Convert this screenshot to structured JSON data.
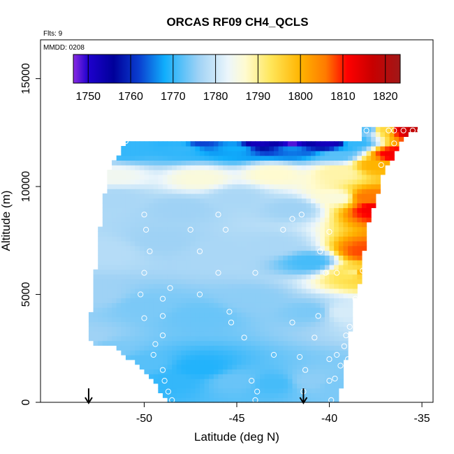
{
  "chart_data": {
    "type": "heatmap",
    "title": "ORCAS RF09 CH4_QCLS",
    "annotations": {
      "flts": "Flts: 9",
      "mmdd": "MMDD: 0208"
    },
    "xlabel": "Latitude (deg N)",
    "ylabel": "Altitude (m)",
    "xlim": [
      -55.6,
      -34.4
    ],
    "ylim": [
      0,
      16800
    ],
    "x_ticks": [
      -50,
      -45,
      -40,
      -35
    ],
    "x_tick_labels": [
      "-50",
      "-45",
      "-40",
      "-35"
    ],
    "y_ticks": [
      0,
      5000,
      10000,
      15000
    ],
    "y_tick_labels": [
      "0",
      "5000",
      "10000",
      "15000"
    ],
    "colorbar": {
      "range": [
        1746.5,
        1823.5
      ],
      "ticks": [
        1750,
        1760,
        1770,
        1780,
        1790,
        1800,
        1810,
        1820
      ],
      "tick_labels": [
        "1750",
        "1760",
        "1770",
        "1780",
        "1790",
        "1800",
        "1810",
        "1820"
      ],
      "colors": [
        [
          1746.5,
          "#8a2be2"
        ],
        [
          1750,
          "#1e00cd"
        ],
        [
          1756,
          "#00009a"
        ],
        [
          1762,
          "#0a3fd0"
        ],
        [
          1768,
          "#10aefc"
        ],
        [
          1776,
          "#9fd2f5"
        ],
        [
          1783,
          "#ecf6fb"
        ],
        [
          1787,
          "#fffbd0"
        ],
        [
          1793,
          "#ffe65a"
        ],
        [
          1800,
          "#ffb400"
        ],
        [
          1806,
          "#ff7a00"
        ],
        [
          1811,
          "#ff0000"
        ],
        [
          1817,
          "#c80000"
        ],
        [
          1823.5,
          "#a01818"
        ]
      ]
    },
    "envelope": [
      [
        -53.0,
        3200
      ],
      [
        -52.4,
        8000
      ],
      [
        -52.0,
        10600
      ],
      [
        -51.0,
        12000
      ],
      [
        -50.6,
        12200
      ],
      [
        -38.2,
        12200
      ],
      [
        -38.2,
        12700
      ],
      [
        -35.2,
        12700
      ],
      [
        -36.0,
        12200
      ],
      [
        -37.0,
        10800
      ],
      [
        -38.0,
        8000
      ],
      [
        -38.3,
        5800
      ],
      [
        -38.7,
        4500
      ],
      [
        -39.0,
        2500
      ],
      [
        -39.3,
        1000
      ],
      [
        -39.5,
        0
      ],
      [
        -48.7,
        0
      ],
      [
        -49.7,
        1200
      ],
      [
        -50.8,
        2000
      ],
      [
        -51.5,
        2600
      ],
      [
        -53.0,
        2800
      ]
    ],
    "field_points": [
      [
        -53.0,
        3000,
        1776
      ],
      [
        -52.0,
        2500,
        1774
      ],
      [
        -50.0,
        1800,
        1772
      ],
      [
        -48.5,
        1000,
        1770
      ],
      [
        -47.0,
        1600,
        1769
      ],
      [
        -45.0,
        1000,
        1773
      ],
      [
        -43.0,
        900,
        1771
      ],
      [
        -41.0,
        1000,
        1775
      ],
      [
        -39.5,
        800,
        1774
      ],
      [
        -52.5,
        5000,
        1776
      ],
      [
        -50.0,
        4500,
        1774
      ],
      [
        -47.0,
        4000,
        1773
      ],
      [
        -44.0,
        4800,
        1775
      ],
      [
        -41.0,
        4200,
        1774
      ],
      [
        -39.2,
        4200,
        1781
      ],
      [
        -52.0,
        7000,
        1778
      ],
      [
        -49.0,
        7500,
        1776
      ],
      [
        -46.0,
        7000,
        1777
      ],
      [
        -43.0,
        7300,
        1777
      ],
      [
        -41.0,
        6500,
        1771
      ],
      [
        -38.6,
        6000,
        1790
      ],
      [
        -51.5,
        9500,
        1777
      ],
      [
        -48.0,
        9000,
        1776
      ],
      [
        -45.0,
        9500,
        1777
      ],
      [
        -42.0,
        9000,
        1776
      ],
      [
        -39.5,
        9500,
        1786
      ],
      [
        -51.5,
        10500,
        1784
      ],
      [
        -47.0,
        10400,
        1786
      ],
      [
        -43.0,
        10600,
        1787
      ],
      [
        -39.5,
        10700,
        1789
      ],
      [
        -51.0,
        11700,
        1770
      ],
      [
        -48.0,
        11800,
        1770
      ],
      [
        -45.0,
        11800,
        1768
      ],
      [
        -42.0,
        11800,
        1766
      ],
      [
        -39.5,
        11500,
        1772
      ],
      [
        -50.8,
        12150,
        1770
      ],
      [
        -47.0,
        12150,
        1762
      ],
      [
        -44.0,
        12100,
        1752
      ],
      [
        -42.0,
        12050,
        1748
      ],
      [
        -40.0,
        12050,
        1752
      ],
      [
        -38.6,
        12050,
        1770
      ],
      [
        -38.0,
        12650,
        1772
      ],
      [
        -37.0,
        12650,
        1795
      ],
      [
        -36.0,
        12650,
        1816
      ],
      [
        -35.4,
        12650,
        1818
      ],
      [
        -37.5,
        11000,
        1800
      ],
      [
        -36.5,
        11500,
        1812
      ],
      [
        -37.5,
        9000,
        1812
      ],
      [
        -38.0,
        7000,
        1808
      ],
      [
        -38.0,
        9500,
        1806
      ],
      [
        -38.4,
        6000,
        1800
      ]
    ],
    "observations": [
      [
        -48.5,
        100
      ],
      [
        -48.7,
        500
      ],
      [
        -48.9,
        1000
      ],
      [
        -49.0,
        1500
      ],
      [
        -49.5,
        2200
      ],
      [
        -49.4,
        2700
      ],
      [
        -49.0,
        3100
      ],
      [
        -49.0,
        4000
      ],
      [
        -50.0,
        3900
      ],
      [
        -50.2,
        5000
      ],
      [
        -50.0,
        6000
      ],
      [
        -49.7,
        7000
      ],
      [
        -49.9,
        8000
      ],
      [
        -50.0,
        8700
      ],
      [
        -49.0,
        4800
      ],
      [
        -48.6,
        5300
      ],
      [
        -47.0,
        5000
      ],
      [
        -45.4,
        4200
      ],
      [
        -45.3,
        3700
      ],
      [
        -44.6,
        3000
      ],
      [
        -44.2,
        1000
      ],
      [
        -44.0,
        100
      ],
      [
        -43.9,
        500
      ],
      [
        -43.0,
        2200
      ],
      [
        -42.0,
        3700
      ],
      [
        -41.6,
        2100
      ],
      [
        -41.3,
        1500
      ],
      [
        -41.4,
        500
      ],
      [
        -40.6,
        4000
      ],
      [
        -40.8,
        3000
      ],
      [
        -40.0,
        2000
      ],
      [
        -40.0,
        1000
      ],
      [
        -39.9,
        100
      ],
      [
        -39.6,
        2200
      ],
      [
        -39.0,
        2000
      ],
      [
        -39.1,
        3100
      ],
      [
        -40.2,
        6000
      ],
      [
        -39.6,
        6000
      ],
      [
        -40.0,
        7900
      ],
      [
        -41.5,
        8700
      ],
      [
        -42.0,
        8500
      ],
      [
        -42.5,
        8000
      ],
      [
        -45.6,
        8000
      ],
      [
        -46.0,
        8700
      ],
      [
        -47.5,
        8000
      ],
      [
        -47.0,
        7000
      ],
      [
        -46.0,
        6000
      ],
      [
        -44.0,
        6000
      ],
      [
        -40.5,
        7000
      ],
      [
        -51.0,
        12100
      ],
      [
        -38.0,
        12600
      ],
      [
        -36.5,
        12600
      ],
      [
        -36.0,
        12600
      ],
      [
        -35.5,
        12600
      ],
      [
        -35.1,
        12600
      ],
      [
        -36.8,
        12600
      ],
      [
        -36.5,
        12000
      ],
      [
        -37.2,
        11000
      ],
      [
        -38.2,
        6100
      ],
      [
        -38.6,
        4800
      ],
      [
        -38.9,
        3500
      ],
      [
        -39.2,
        2600
      ],
      [
        -39.4,
        1700
      ],
      [
        -39.7,
        1100
      ]
    ],
    "arrows_x": [
      -53.0,
      -41.4
    ],
    "grid": false,
    "legend": "colorbar top"
  }
}
